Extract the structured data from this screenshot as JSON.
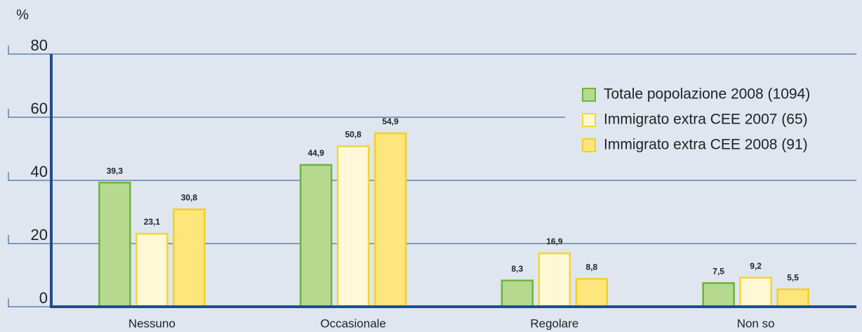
{
  "chart_data": {
    "type": "bar",
    "y_label": "%",
    "categories": [
      "Nessuno",
      "Occasionale",
      "Regolare",
      "Non so"
    ],
    "series": [
      {
        "name": "Totale popolazione 2008 (1094)",
        "color": "#b5d98e",
        "stroke": "#6db33f",
        "values": [
          39.3,
          44.9,
          8.3,
          7.5
        ],
        "value_labels": [
          "39,3",
          "44,9",
          "8,3",
          "7,5"
        ]
      },
      {
        "name": "Immigrato extra CEE 2007 (65)",
        "color": "#fef8d6",
        "stroke": "#f4d62a",
        "values": [
          23.1,
          50.8,
          16.9,
          9.2
        ],
        "value_labels": [
          "23,1",
          "50,8",
          "16,9",
          "9,2"
        ]
      },
      {
        "name": "Immigrato extra CEE 2008 (91)",
        "color": "#fde67c",
        "stroke": "#f3cf22",
        "values": [
          30.8,
          54.9,
          8.8,
          5.5
        ],
        "value_labels": [
          "30,8",
          "54,9",
          "8,8",
          "5,5"
        ]
      }
    ],
    "ylim": [
      0,
      80
    ],
    "yticks": [
      0,
      20,
      40,
      60,
      80
    ],
    "grid": true,
    "legend": "top-right"
  }
}
